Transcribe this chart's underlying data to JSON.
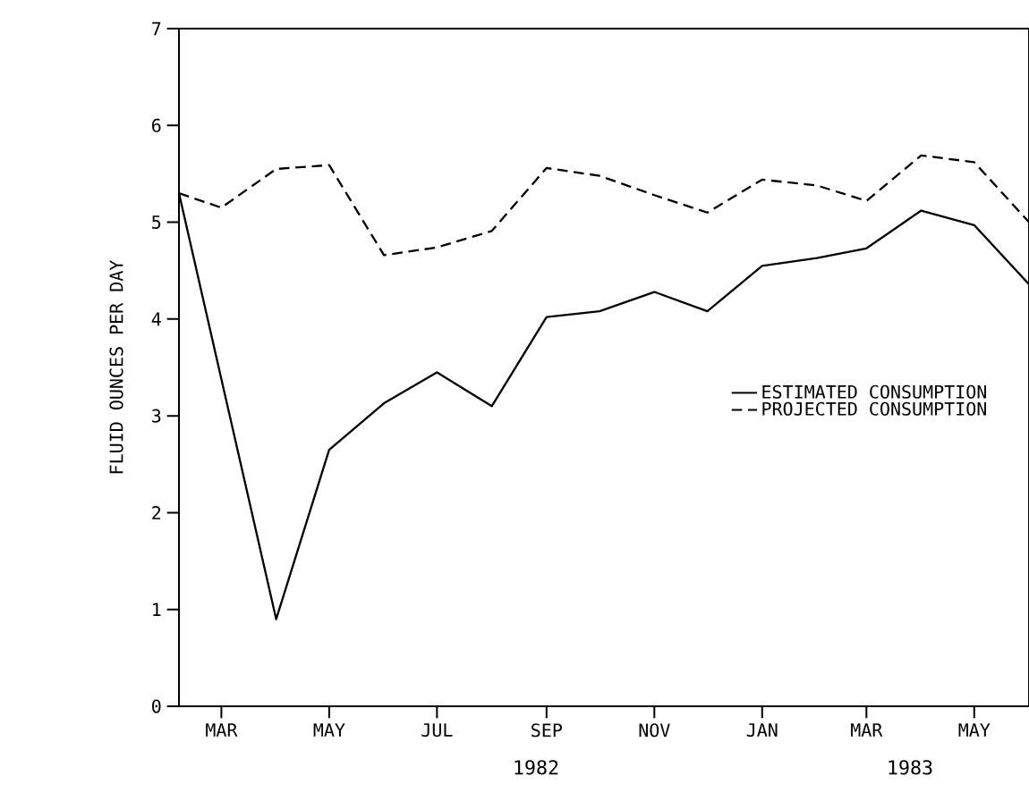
{
  "chart_data": {
    "type": "line",
    "ylabel": "FLUID OUNCES PER DAY",
    "series": [
      {
        "name": "ESTIMATED CONSUMPTION",
        "color": "#000000",
        "line_style": "solid",
        "x": [
          "1982-02-05",
          "1982-04",
          "1982-05",
          "1982-06",
          "1982-07",
          "1982-08",
          "1982-09",
          "1982-10",
          "1982-11",
          "1982-12",
          "1983-01",
          "1983-02",
          "1983-03",
          "1983-04",
          "1983-05",
          "1983-06"
        ],
        "values": [
          5.3,
          0.9,
          2.65,
          3.13,
          3.45,
          3.1,
          4.02,
          4.08,
          4.28,
          4.08,
          4.55,
          4.63,
          4.73,
          5.12,
          4.97,
          4.36
        ]
      },
      {
        "name": "PROJECTED CONSUMPTION",
        "color": "#000000",
        "line_style": "dashed",
        "x": [
          "1982-02-05",
          "1982-03",
          "1982-04",
          "1982-05",
          "1982-06",
          "1982-07",
          "1982-08",
          "1982-09",
          "1982-10",
          "1982-11",
          "1982-12",
          "1983-01",
          "1983-02",
          "1983-03",
          "1983-04",
          "1983-05",
          "1983-06"
        ],
        "values": [
          5.3,
          5.15,
          5.55,
          5.59,
          4.66,
          4.74,
          4.91,
          5.56,
          5.48,
          5.28,
          5.1,
          5.44,
          5.38,
          5.22,
          5.69,
          5.62,
          5.0
        ]
      }
    ],
    "xlim": [
      "1982-02-05",
      "1983-06"
    ],
    "ylim": [
      0,
      7
    ],
    "xticks": [
      {
        "value": "1982-03",
        "label": "MAR"
      },
      {
        "value": "1982-05",
        "label": "MAY"
      },
      {
        "value": "1982-07",
        "label": "JUL"
      },
      {
        "value": "1982-09",
        "label": "SEP"
      },
      {
        "value": "1982-11",
        "label": "NOV"
      },
      {
        "value": "1983-01",
        "label": "JAN"
      },
      {
        "value": "1983-03",
        "label": "MAR"
      },
      {
        "value": "1983-05",
        "label": "MAY"
      }
    ],
    "yticks": [
      0,
      1,
      2,
      3,
      4,
      5,
      6,
      7
    ],
    "annotations": [
      "1982",
      "1983"
    ],
    "grid": false,
    "legend": "right",
    "marker": "none"
  }
}
